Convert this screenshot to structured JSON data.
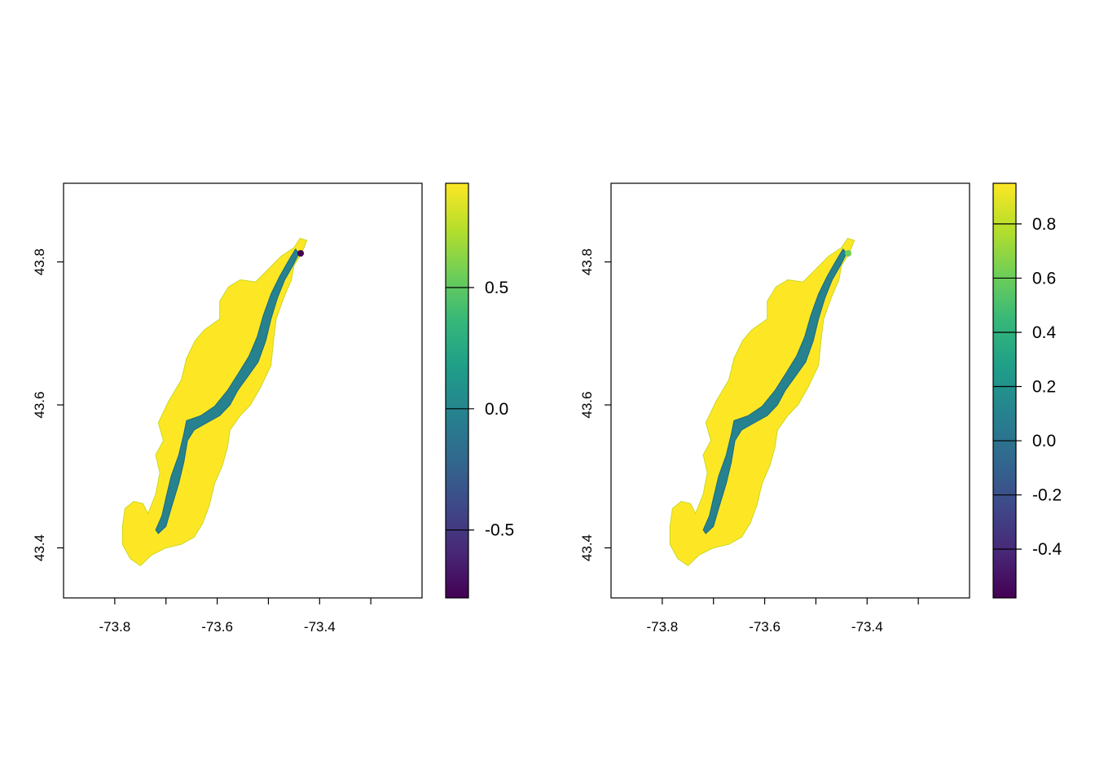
{
  "chart_data": [
    {
      "type": "heatmap",
      "title": "",
      "xlabel": "",
      "ylabel": "",
      "xlim": [
        -73.9,
        -73.2
      ],
      "ylim": [
        43.33,
        43.91
      ],
      "x_ticks": [
        -73.8,
        -73.7,
        -73.6,
        -73.5,
        -73.4,
        -73.3
      ],
      "x_tick_labels": [
        "-73.8",
        "",
        "-73.6",
        "",
        "-73.4",
        ""
      ],
      "y_ticks": [
        43.4,
        43.6,
        43.8
      ],
      "y_tick_labels": [
        "43.4",
        "43.6",
        "43.8"
      ],
      "colorbar": {
        "range": [
          -0.78,
          0.93
        ],
        "ticks": [
          -0.5,
          0.0,
          0.5
        ],
        "tick_labels": [
          "-0.5",
          "0.0",
          "0.5"
        ],
        "colormap": "viridis"
      },
      "land_value": 0.9,
      "water_value": 0.05,
      "anomaly_value": -0.7
    },
    {
      "type": "heatmap",
      "title": "",
      "xlabel": "",
      "ylabel": "",
      "xlim": [
        -73.9,
        -73.2
      ],
      "ylim": [
        43.33,
        43.91
      ],
      "x_ticks": [
        -73.8,
        -73.7,
        -73.6,
        -73.5,
        -73.4,
        -73.3
      ],
      "x_tick_labels": [
        "-73.8",
        "",
        "-73.6",
        "",
        "-73.4",
        ""
      ],
      "y_ticks": [
        43.4,
        43.6,
        43.8
      ],
      "y_tick_labels": [
        "43.4",
        "43.6",
        "43.8"
      ],
      "colorbar": {
        "range": [
          -0.58,
          0.95
        ],
        "ticks": [
          -0.4,
          -0.2,
          0.0,
          0.2,
          0.4,
          0.6,
          0.8
        ],
        "tick_labels": [
          "-0.4",
          "-0.2",
          "0.0",
          "0.2",
          "0.4",
          "0.6",
          "0.8"
        ],
        "colormap": "viridis"
      },
      "land_value": 0.9,
      "water_value": 0.05,
      "anomaly_value": 0.6
    }
  ],
  "colors": {
    "viridis_stops": [
      "#440154",
      "#482878",
      "#3e4989",
      "#31688e",
      "#26828e",
      "#1f9e89",
      "#35b779",
      "#6ece58",
      "#b5de2b",
      "#fde725"
    ],
    "land": "#e3e21f",
    "water": "#1f6f86",
    "axis": "#000000"
  }
}
